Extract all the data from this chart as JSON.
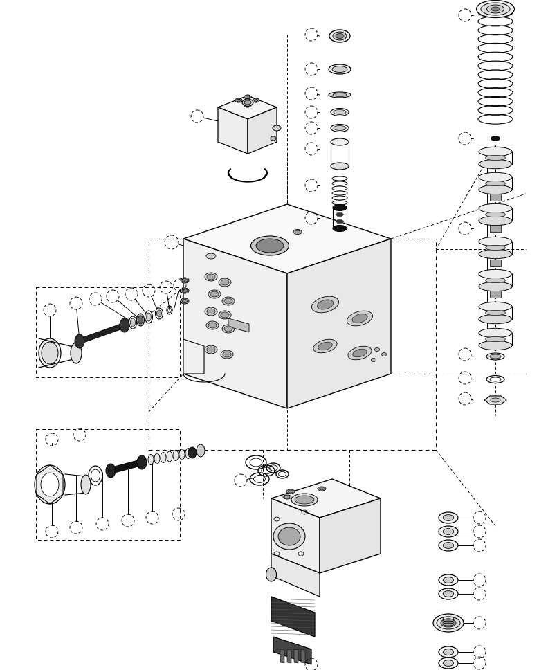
{
  "bg_color": "#ffffff",
  "fig_width": 7.92,
  "fig_height": 9.68,
  "dpi": 100
}
